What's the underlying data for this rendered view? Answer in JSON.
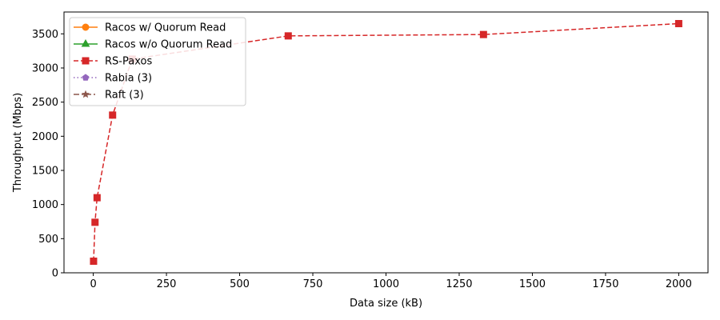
{
  "chart_data": {
    "type": "line",
    "title": "",
    "xlabel": "Data size (kB)",
    "ylabel": "Throughput (Mbps)",
    "xlim": [
      -100,
      2100
    ],
    "ylim": [
      0,
      3820
    ],
    "xticks": [
      0,
      250,
      500,
      750,
      1000,
      1250,
      1500,
      1750,
      2000
    ],
    "yticks": [
      0,
      500,
      1000,
      1500,
      2000,
      2500,
      3000,
      3500
    ],
    "grid": false,
    "legend_position": "top-left",
    "series": [
      {
        "name": "Racos w/ Quorum Read",
        "color": "#ff7f0e",
        "line_style": "solid",
        "marker": "circle",
        "x": [],
        "y": []
      },
      {
        "name": "Racos w/o Quorum Read",
        "color": "#2ca02c",
        "line_style": "solid",
        "marker": "triangle-up",
        "x": [],
        "y": []
      },
      {
        "name": "RS-Paxos",
        "color": "#d62728",
        "line_style": "dashed",
        "marker": "square",
        "x": [
          1,
          6,
          13,
          66,
          133,
          666,
          1333,
          2000
        ],
        "y": [
          170,
          740,
          1100,
          2310,
          3130,
          3470,
          3490,
          3650
        ]
      },
      {
        "name": "Rabia (3)",
        "color": "#9467bd",
        "line_style": "dotted",
        "marker": "pentagon",
        "x": [],
        "y": []
      },
      {
        "name": "Raft (3)",
        "color": "#8c564b",
        "line_style": "dashdot",
        "marker": "star",
        "x": [],
        "y": []
      }
    ]
  }
}
